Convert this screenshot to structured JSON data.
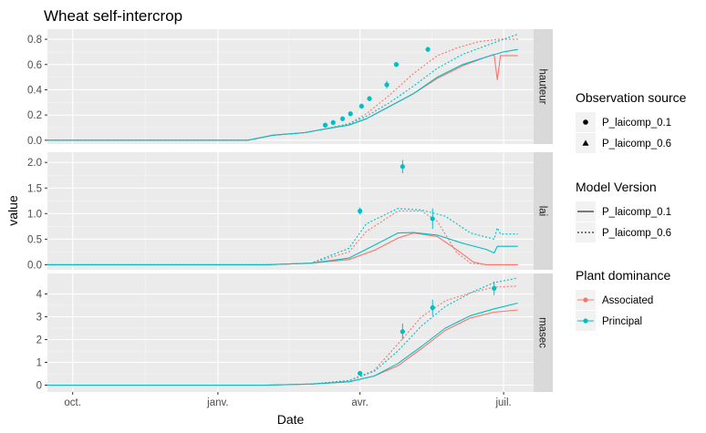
{
  "chart_data": {
    "type": "line",
    "title": "Wheat self-intercrop",
    "xlabel": "Date",
    "ylabel": "value",
    "x_ticks": [
      "oct.",
      "janv.",
      "avr.",
      "juil."
    ],
    "x_tick_dates": [
      "2016-10-01",
      "2017-01-01",
      "2017-04-01",
      "2017-07-01"
    ],
    "x_range": [
      "2016-09-15",
      "2017-07-20"
    ],
    "grid": true,
    "legend_placement": "right",
    "colors": {
      "Associated": "#F8766D",
      "Principal": "#00BFC4",
      "panel_bg": "#EBEBEB",
      "strip_bg": "#D9D9D9"
    },
    "legends": [
      {
        "title": "Observation source",
        "items": [
          "P_laicomp_0.1",
          "P_laicomp_0.6"
        ],
        "symbols": [
          "circle",
          "triangle"
        ]
      },
      {
        "title": "Model Version",
        "items": [
          "P_laicomp_0.1",
          "P_laicomp_0.6"
        ],
        "symbols": [
          "solid",
          "dotted"
        ]
      },
      {
        "title": "Plant dominance",
        "items": [
          "Associated",
          "Principal"
        ],
        "symbols": [
          "Associated",
          "Principal"
        ]
      }
    ],
    "panels": [
      {
        "strip": "hauteur",
        "ylim": [
          -0.03,
          0.88
        ],
        "y_ticks": [
          0.0,
          0.2,
          0.4,
          0.6,
          0.8
        ],
        "y_tick_labels": [
          "0.0",
          "0.2",
          "0.4",
          "0.6",
          "0.8"
        ],
        "series": [
          {
            "dominance": "Associated",
            "version": "P_laicomp_0.1",
            "points": [
              [
                "2016-09-15",
                0
              ],
              [
                "2017-01-20",
                0
              ],
              [
                "2017-02-05",
                0.04
              ],
              [
                "2017-02-25",
                0.06
              ],
              [
                "2017-03-10",
                0.09
              ],
              [
                "2017-03-25",
                0.12
              ],
              [
                "2017-04-05",
                0.17
              ],
              [
                "2017-04-20",
                0.27
              ],
              [
                "2017-05-05",
                0.37
              ],
              [
                "2017-05-20",
                0.49
              ],
              [
                "2017-06-05",
                0.59
              ],
              [
                "2017-06-20",
                0.66
              ],
              [
                "2017-06-25",
                0.68
              ],
              [
                "2017-06-27",
                0.48
              ],
              [
                "2017-06-29",
                0.67
              ],
              [
                "2017-07-10",
                0.67
              ]
            ]
          },
          {
            "dominance": "Principal",
            "version": "P_laicomp_0.1",
            "points": [
              [
                "2016-09-15",
                0
              ],
              [
                "2017-01-20",
                0
              ],
              [
                "2017-02-05",
                0.04
              ],
              [
                "2017-02-25",
                0.06
              ],
              [
                "2017-03-10",
                0.09
              ],
              [
                "2017-03-25",
                0.12
              ],
              [
                "2017-04-05",
                0.17
              ],
              [
                "2017-04-20",
                0.27
              ],
              [
                "2017-05-05",
                0.37
              ],
              [
                "2017-05-20",
                0.5
              ],
              [
                "2017-06-05",
                0.6
              ],
              [
                "2017-06-20",
                0.66
              ],
              [
                "2017-07-01",
                0.7
              ],
              [
                "2017-07-10",
                0.72
              ]
            ]
          },
          {
            "dominance": "Associated",
            "version": "P_laicomp_0.6",
            "points": [
              [
                "2016-09-15",
                0
              ],
              [
                "2017-01-20",
                0
              ],
              [
                "2017-02-05",
                0.04
              ],
              [
                "2017-02-25",
                0.06
              ],
              [
                "2017-03-10",
                0.09
              ],
              [
                "2017-03-25",
                0.13
              ],
              [
                "2017-04-05",
                0.21
              ],
              [
                "2017-04-20",
                0.36
              ],
              [
                "2017-05-05",
                0.53
              ],
              [
                "2017-05-20",
                0.67
              ],
              [
                "2017-06-01",
                0.73
              ],
              [
                "2017-06-15",
                0.78
              ],
              [
                "2017-06-27",
                0.8
              ],
              [
                "2017-07-10",
                0.8
              ]
            ]
          },
          {
            "dominance": "Principal",
            "version": "P_laicomp_0.6",
            "points": [
              [
                "2016-09-15",
                0
              ],
              [
                "2017-01-20",
                0
              ],
              [
                "2017-02-05",
                0.04
              ],
              [
                "2017-02-25",
                0.06
              ],
              [
                "2017-03-10",
                0.09
              ],
              [
                "2017-03-25",
                0.13
              ],
              [
                "2017-04-05",
                0.19
              ],
              [
                "2017-04-20",
                0.3
              ],
              [
                "2017-05-05",
                0.43
              ],
              [
                "2017-05-20",
                0.57
              ],
              [
                "2017-06-05",
                0.68
              ],
              [
                "2017-06-20",
                0.75
              ],
              [
                "2017-07-01",
                0.8
              ],
              [
                "2017-07-10",
                0.84
              ]
            ]
          }
        ],
        "observations": [
          {
            "dominance": "Principal",
            "source": "P_laicomp_0.1",
            "points": [
              [
                "2017-03-10",
                0.12,
                0.02
              ],
              [
                "2017-03-15",
                0.14,
                0.02
              ],
              [
                "2017-03-21",
                0.17,
                0.02
              ],
              [
                "2017-03-26",
                0.21,
                0.02
              ],
              [
                "2017-04-02",
                0.27,
                0.02
              ],
              [
                "2017-04-07",
                0.33,
                0.02
              ],
              [
                "2017-04-18",
                0.44,
                0.03
              ],
              [
                "2017-04-24",
                0.6,
                0.02
              ],
              [
                "2017-05-14",
                0.72,
                0.02
              ]
            ]
          }
        ]
      },
      {
        "strip": "lai",
        "ylim": [
          -0.1,
          2.2
        ],
        "y_ticks": [
          0.0,
          0.5,
          1.0,
          1.5,
          2.0
        ],
        "y_tick_labels": [
          "0.0",
          "0.5",
          "1.0",
          "1.5",
          "2.0"
        ],
        "series": [
          {
            "dominance": "Associated",
            "version": "P_laicomp_0.1",
            "points": [
              [
                "2016-09-15",
                0
              ],
              [
                "2017-02-01",
                0
              ],
              [
                "2017-03-01",
                0.03
              ],
              [
                "2017-03-25",
                0.1
              ],
              [
                "2017-04-10",
                0.28
              ],
              [
                "2017-04-25",
                0.52
              ],
              [
                "2017-05-05",
                0.62
              ],
              [
                "2017-05-20",
                0.55
              ],
              [
                "2017-06-01",
                0.3
              ],
              [
                "2017-06-12",
                0.05
              ],
              [
                "2017-06-20",
                0
              ],
              [
                "2017-07-10",
                0
              ]
            ]
          },
          {
            "dominance": "Principal",
            "version": "P_laicomp_0.1",
            "points": [
              [
                "2016-09-15",
                0
              ],
              [
                "2017-02-01",
                0
              ],
              [
                "2017-03-01",
                0.03
              ],
              [
                "2017-03-25",
                0.13
              ],
              [
                "2017-04-10",
                0.38
              ],
              [
                "2017-04-25",
                0.62
              ],
              [
                "2017-05-05",
                0.63
              ],
              [
                "2017-05-20",
                0.58
              ],
              [
                "2017-06-05",
                0.42
              ],
              [
                "2017-06-20",
                0.3
              ],
              [
                "2017-06-25",
                0.23
              ],
              [
                "2017-06-27",
                0.36
              ],
              [
                "2017-07-10",
                0.36
              ]
            ]
          },
          {
            "dominance": "Associated",
            "version": "P_laicomp_0.6",
            "points": [
              [
                "2016-09-15",
                0
              ],
              [
                "2017-02-01",
                0
              ],
              [
                "2017-03-01",
                0.03
              ],
              [
                "2017-03-25",
                0.25
              ],
              [
                "2017-04-05",
                0.65
              ],
              [
                "2017-04-15",
                0.85
              ],
              [
                "2017-04-25",
                1.05
              ],
              [
                "2017-05-10",
                1.05
              ],
              [
                "2017-05-20",
                0.85
              ],
              [
                "2017-06-01",
                0.25
              ],
              [
                "2017-06-10",
                0.03
              ],
              [
                "2017-06-20",
                0
              ],
              [
                "2017-07-10",
                0
              ]
            ]
          },
          {
            "dominance": "Principal",
            "version": "P_laicomp_0.6",
            "points": [
              [
                "2016-09-15",
                0
              ],
              [
                "2017-02-01",
                0
              ],
              [
                "2017-03-01",
                0.03
              ],
              [
                "2017-03-25",
                0.32
              ],
              [
                "2017-04-05",
                0.8
              ],
              [
                "2017-04-15",
                0.95
              ],
              [
                "2017-04-25",
                1.1
              ],
              [
                "2017-05-10",
                1.07
              ],
              [
                "2017-05-25",
                0.95
              ],
              [
                "2017-06-10",
                0.62
              ],
              [
                "2017-06-25",
                0.5
              ],
              [
                "2017-06-27",
                0.72
              ],
              [
                "2017-06-29",
                0.6
              ],
              [
                "2017-07-10",
                0.6
              ]
            ]
          }
        ],
        "observations": [
          {
            "dominance": "Principal",
            "source": "P_laicomp_0.1",
            "points": [
              [
                "2017-04-01",
                1.05,
                0.07
              ],
              [
                "2017-04-28",
                1.92,
                0.13
              ],
              [
                "2017-05-17",
                0.9,
                0.2
              ]
            ]
          }
        ]
      },
      {
        "strip": "masec",
        "ylim": [
          -0.3,
          4.9
        ],
        "y_ticks": [
          0,
          1,
          2,
          3,
          4
        ],
        "y_tick_labels": [
          "0",
          "1",
          "2",
          "3",
          "4"
        ],
        "series": [
          {
            "dominance": "Associated",
            "version": "P_laicomp_0.1",
            "points": [
              [
                "2016-09-15",
                0
              ],
              [
                "2017-02-01",
                0
              ],
              [
                "2017-03-01",
                0.05
              ],
              [
                "2017-03-25",
                0.15
              ],
              [
                "2017-04-10",
                0.4
              ],
              [
                "2017-04-25",
                0.85
              ],
              [
                "2017-05-10",
                1.6
              ],
              [
                "2017-05-25",
                2.4
              ],
              [
                "2017-06-10",
                2.95
              ],
              [
                "2017-06-25",
                3.2
              ],
              [
                "2017-07-10",
                3.3
              ]
            ]
          },
          {
            "dominance": "Principal",
            "version": "P_laicomp_0.1",
            "points": [
              [
                "2016-09-15",
                0
              ],
              [
                "2017-02-01",
                0
              ],
              [
                "2017-03-01",
                0.05
              ],
              [
                "2017-03-25",
                0.15
              ],
              [
                "2017-04-10",
                0.4
              ],
              [
                "2017-04-25",
                0.95
              ],
              [
                "2017-05-10",
                1.7
              ],
              [
                "2017-05-25",
                2.5
              ],
              [
                "2017-06-10",
                3.05
              ],
              [
                "2017-06-25",
                3.35
              ],
              [
                "2017-07-10",
                3.6
              ]
            ]
          },
          {
            "dominance": "Associated",
            "version": "P_laicomp_0.6",
            "points": [
              [
                "2016-09-15",
                0
              ],
              [
                "2017-02-01",
                0
              ],
              [
                "2017-03-01",
                0.05
              ],
              [
                "2017-03-25",
                0.2
              ],
              [
                "2017-04-10",
                0.65
              ],
              [
                "2017-04-25",
                1.8
              ],
              [
                "2017-05-10",
                3.0
              ],
              [
                "2017-05-25",
                3.7
              ],
              [
                "2017-06-10",
                4.05
              ],
              [
                "2017-06-25",
                4.3
              ],
              [
                "2017-07-10",
                4.35
              ]
            ]
          },
          {
            "dominance": "Principal",
            "version": "P_laicomp_0.6",
            "points": [
              [
                "2016-09-15",
                0
              ],
              [
                "2017-02-01",
                0
              ],
              [
                "2017-03-01",
                0.05
              ],
              [
                "2017-03-25",
                0.2
              ],
              [
                "2017-04-10",
                0.6
              ],
              [
                "2017-04-25",
                1.5
              ],
              [
                "2017-05-10",
                2.6
              ],
              [
                "2017-05-25",
                3.45
              ],
              [
                "2017-06-10",
                4.05
              ],
              [
                "2017-06-25",
                4.5
              ],
              [
                "2017-07-10",
                4.7
              ]
            ]
          }
        ],
        "observations": [
          {
            "dominance": "Principal",
            "source": "P_laicomp_0.1",
            "points": [
              [
                "2017-04-01",
                0.52,
                0.1
              ],
              [
                "2017-04-28",
                2.35,
                0.35
              ],
              [
                "2017-05-17",
                3.4,
                0.35
              ],
              [
                "2017-06-25",
                4.25,
                0.3
              ]
            ]
          }
        ]
      }
    ]
  }
}
